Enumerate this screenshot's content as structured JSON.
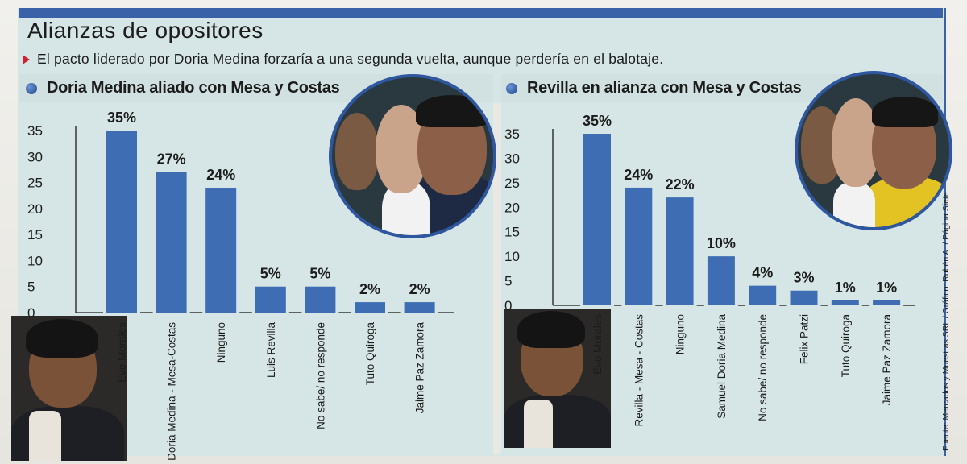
{
  "header": {
    "title": "Alianzas de opositores",
    "subtitle": "El pacto liderado por Doria Medina forzaría a una segunda vuelta, aunque perdería en el balotaje."
  },
  "credit": "Fuente: Mercados y Muestras SRL / Gráfico: Rubén A. / Página Siete",
  "colors": {
    "bar": "#3f6db3",
    "frame": "#3a62a8",
    "bullet": "#d02030",
    "panel": "#d6e6e6"
  },
  "chart_data": [
    {
      "type": "bar",
      "title": "Doria Medina aliado con Mesa y Costas",
      "categories": [
        "Evo Morales",
        "Doria Medina - Mesa-Costas",
        "Ninguno",
        "Luis Revilla",
        "No sabe/ no responde",
        "Tuto Quiroga",
        "Jaime Paz Zamora"
      ],
      "values": [
        35,
        27,
        24,
        5,
        5,
        2,
        2
      ],
      "labels": [
        "35%",
        "27%",
        "24%",
        "5%",
        "5%",
        "2%",
        "2%"
      ],
      "yticks": [
        "35",
        "30",
        "25",
        "20",
        "15",
        "10",
        "5",
        "0"
      ],
      "ylim": [
        0,
        35
      ],
      "grid": false,
      "xlabel": "",
      "ylabel": ""
    },
    {
      "type": "bar",
      "title": "Revilla en alianza con Mesa y Costas",
      "categories": [
        "Evo Morales",
        "Revilla - Mesa - Costas",
        "Ninguno",
        "Samuel Doria Medina",
        "No sabe/ no responde",
        "Felix Patzi",
        "Tuto Quiroga",
        "Jaime Paz Zamora"
      ],
      "values": [
        35,
        24,
        22,
        10,
        4,
        3,
        1,
        1
      ],
      "labels": [
        "35%",
        "24%",
        "22%",
        "10%",
        "4%",
        "3%",
        "1%",
        "1%"
      ],
      "yticks": [
        "35",
        "30",
        "25",
        "20",
        "15",
        "10",
        "5",
        "0"
      ],
      "ylim": [
        0,
        35
      ],
      "grid": false,
      "xlabel": "",
      "ylabel": ""
    }
  ]
}
